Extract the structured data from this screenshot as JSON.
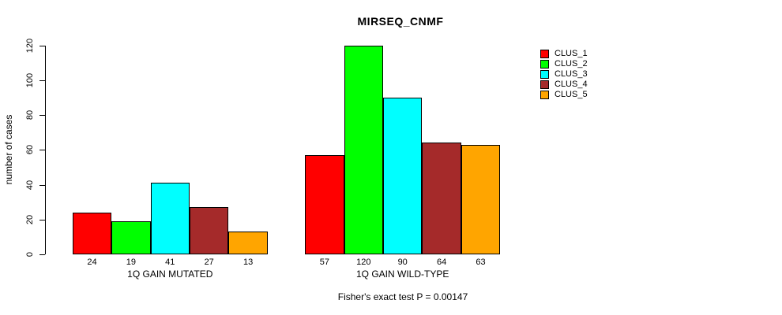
{
  "title": "MIRSEQ_CNMF",
  "ylabel": "number of cases",
  "footer": "Fisher's exact test P = 0.00147",
  "legend": [
    {
      "label": "CLUS_1",
      "color": "#FF0000"
    },
    {
      "label": "CLUS_2",
      "color": "#00FF00"
    },
    {
      "label": "CLUS_3",
      "color": "#00FFFF"
    },
    {
      "label": "CLUS_4",
      "color": "#A52A2A"
    },
    {
      "label": "CLUS_5",
      "color": "#FFA500"
    }
  ],
  "chart_data": {
    "type": "bar",
    "title": "MIRSEQ_CNMF",
    "ylabel": "number of cases",
    "xlabel": "",
    "ylim": [
      0,
      120
    ],
    "yticks": [
      0,
      20,
      40,
      60,
      80,
      100,
      120
    ],
    "grid": false,
    "legend_position": "right",
    "series": [
      "CLUS_1",
      "CLUS_2",
      "CLUS_3",
      "CLUS_4",
      "CLUS_5"
    ],
    "colors": [
      "#FF0000",
      "#00FF00",
      "#00FFFF",
      "#A52A2A",
      "#FFA500"
    ],
    "groups": [
      {
        "label": "1Q GAIN MUTATED",
        "values": [
          24,
          19,
          41,
          27,
          13
        ]
      },
      {
        "label": "1Q GAIN WILD-TYPE",
        "values": [
          57,
          120,
          90,
          64,
          63
        ]
      }
    ],
    "bar_value_labels_shown": true,
    "annotation": "Fisher's exact test P = 0.00147"
  }
}
